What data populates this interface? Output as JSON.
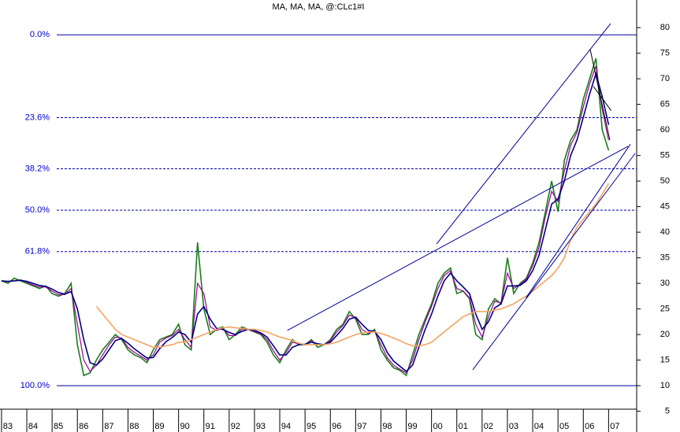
{
  "chart_data": {
    "type": "line",
    "title": "MA, MA, MA, @:CLc1#I",
    "xlim": [
      1982.94,
      2008.11
    ],
    "ylim": [
      5.4,
      85.4
    ],
    "yticks": [
      5,
      10,
      15,
      20,
      25,
      30,
      35,
      40,
      45,
      50,
      55,
      60,
      65,
      70,
      75,
      80
    ],
    "xticks": [
      {
        "value": 1983,
        "label": "83"
      },
      {
        "value": 1984,
        "label": "84"
      },
      {
        "value": 1985,
        "label": "85"
      },
      {
        "value": 1986,
        "label": "86"
      },
      {
        "value": 1987,
        "label": "87"
      },
      {
        "value": 1988,
        "label": "88"
      },
      {
        "value": 1989,
        "label": "89"
      },
      {
        "value": 1990,
        "label": "90"
      },
      {
        "value": 1991,
        "label": "91"
      },
      {
        "value": 1992,
        "label": "92"
      },
      {
        "value": 1993,
        "label": "93"
      },
      {
        "value": 1994,
        "label": "94"
      },
      {
        "value": 1995,
        "label": "95"
      },
      {
        "value": 1996,
        "label": "96"
      },
      {
        "value": 1997,
        "label": "97"
      },
      {
        "value": 1998,
        "label": "98"
      },
      {
        "value": 1999,
        "label": "99"
      },
      {
        "value": 2000,
        "label": "00"
      },
      {
        "value": 2001,
        "label": "01"
      },
      {
        "value": 2002,
        "label": "02"
      },
      {
        "value": 2003,
        "label": "03"
      },
      {
        "value": 2004,
        "label": "04"
      },
      {
        "value": 2005,
        "label": "05"
      },
      {
        "value": 2006,
        "label": "06"
      },
      {
        "value": 2007,
        "label": "07"
      }
    ],
    "x": [
      1983,
      1983.25,
      1983.5,
      1983.75,
      1984,
      1984.25,
      1984.5,
      1984.75,
      1985,
      1985.25,
      1985.5,
      1985.75,
      1986,
      1986.25,
      1986.5,
      1986.75,
      1987,
      1987.25,
      1987.5,
      1987.75,
      1988,
      1988.25,
      1988.5,
      1988.75,
      1989,
      1989.25,
      1989.5,
      1989.75,
      1990,
      1990.25,
      1990.5,
      1990.75,
      1991,
      1991.25,
      1991.5,
      1991.75,
      1992,
      1992.25,
      1992.5,
      1992.75,
      1993,
      1993.25,
      1993.5,
      1993.75,
      1994,
      1994.25,
      1994.5,
      1994.75,
      1995,
      1995.25,
      1995.5,
      1995.75,
      1996,
      1996.25,
      1996.5,
      1996.75,
      1997,
      1997.25,
      1997.5,
      1997.75,
      1998,
      1998.25,
      1998.5,
      1998.75,
      1999,
      1999.25,
      1999.5,
      1999.75,
      2000,
      2000.25,
      2000.5,
      2000.75,
      2001,
      2001.25,
      2001.5,
      2001.75,
      2002,
      2002.25,
      2002.5,
      2002.75,
      2003,
      2003.25,
      2003.5,
      2003.75,
      2004,
      2004.25,
      2004.5,
      2004.75,
      2005,
      2005.25,
      2005.5,
      2005.75,
      2006,
      2006.25,
      2006.5,
      2006.75,
      2007
    ],
    "series": [
      {
        "color": "#1b7d1b",
        "width": 1.6,
        "values": [
          30.5,
          30,
          31,
          30.5,
          30,
          29.5,
          29,
          29.5,
          28,
          27.5,
          28,
          30,
          18,
          12,
          12.5,
          15,
          17,
          18.5,
          20,
          19,
          17,
          16,
          15.5,
          14.5,
          17,
          19,
          19.5,
          20,
          22,
          18,
          17,
          38,
          25,
          20,
          21,
          21.5,
          19,
          20,
          21.5,
          21,
          20.5,
          20,
          18.5,
          16,
          14.5,
          17,
          19,
          18,
          18,
          19,
          17.5,
          18,
          19,
          21,
          22,
          24.5,
          23,
          20,
          20,
          21,
          17,
          15,
          13.5,
          13,
          12,
          16,
          20,
          23,
          26,
          30,
          32,
          33,
          28,
          28.5,
          27,
          20,
          19,
          25,
          27,
          26,
          35,
          28,
          30,
          31,
          34,
          38,
          44,
          50,
          44,
          54,
          58,
          60,
          66,
          70,
          74,
          60,
          56
        ]
      },
      {
        "color": "#990099",
        "width": 1.2,
        "values": [
          30.5,
          30.3,
          30.5,
          30.7,
          30.2,
          29.7,
          29.3,
          29.3,
          28.5,
          27.8,
          27.8,
          29,
          22,
          15,
          12.8,
          14,
          16,
          18,
          19.5,
          19.3,
          17.5,
          16.5,
          15.8,
          15,
          16,
          18.5,
          19.3,
          19.8,
          21,
          19,
          17.5,
          30,
          28,
          21.5,
          20.8,
          21.2,
          19.8,
          19.8,
          21,
          21,
          20.6,
          20.1,
          19,
          16.8,
          15,
          16.5,
          18.5,
          18.2,
          18,
          18.8,
          18,
          18,
          18.8,
          20.5,
          21.8,
          23.8,
          23.3,
          21,
          20.2,
          20.7,
          18,
          15.5,
          14,
          13.2,
          12.5,
          15,
          19,
          22.5,
          25.5,
          29,
          31.5,
          32.5,
          29,
          28.5,
          27.2,
          22,
          19.5,
          23.5,
          26.5,
          26.2,
          32,
          29,
          29.8,
          30.8,
          33.5,
          37,
          43,
          48,
          46,
          52,
          57,
          59.5,
          64.5,
          69,
          72.5,
          64,
          58
        ]
      },
      {
        "color": "#000080",
        "width": 1.6,
        "values": [
          30.5,
          30.4,
          30.5,
          30.6,
          30.4,
          30,
          29.6,
          29.4,
          28.9,
          28.2,
          27.9,
          28.4,
          25,
          19,
          14.5,
          14,
          15.2,
          17,
          18.8,
          19.2,
          18.3,
          17.2,
          16.3,
          15.4,
          15.5,
          17.2,
          18.6,
          19.4,
          20.5,
          20,
          18.5,
          24,
          25.5,
          23,
          21.2,
          21,
          20.4,
          20,
          20.6,
          21,
          20.8,
          20.3,
          19.5,
          17.8,
          16,
          16,
          17.5,
          18,
          18.1,
          18.5,
          18.2,
          18,
          18.5,
          19.8,
          21.2,
          23,
          23.4,
          22,
          20.8,
          20.6,
          19,
          16.5,
          14.8,
          13.8,
          12.8,
          14,
          17.5,
          21,
          24,
          27.5,
          30.5,
          32,
          30.5,
          29.3,
          28,
          24,
          21,
          22.5,
          25.2,
          26,
          29.5,
          29.5,
          29.6,
          30.5,
          32.5,
          35.5,
          40.5,
          45.5,
          46.5,
          50,
          55,
          58,
          62.5,
          67,
          71,
          66.5,
          61
        ]
      },
      {
        "color": "#f4a460",
        "width": 1.6,
        "values": [
          null,
          null,
          null,
          null,
          null,
          null,
          null,
          null,
          null,
          null,
          null,
          null,
          null,
          null,
          null,
          25.5,
          24,
          22.5,
          21,
          20,
          19.5,
          19,
          18.5,
          18,
          17.5,
          17.5,
          17.8,
          18,
          18.5,
          18.5,
          19,
          19.5,
          20,
          20.5,
          21,
          21.3,
          21.5,
          21.3,
          21.2,
          21,
          21,
          20.8,
          20.5,
          20,
          19.5,
          19.2,
          18.8,
          18.3,
          18,
          18,
          18,
          18,
          18.2,
          18.5,
          19,
          19.5,
          20,
          20.3,
          20.5,
          20.5,
          20.2,
          19.8,
          19.3,
          18.8,
          18.2,
          17.8,
          17.8,
          18,
          18.5,
          19.5,
          20.5,
          21.5,
          22.5,
          23.5,
          24,
          24.5,
          24.5,
          24.5,
          24.8,
          25,
          25.5,
          26,
          26.8,
          27.5,
          28.5,
          29.5,
          30.5,
          31.5,
          33,
          35,
          38.5,
          41,
          42.5,
          44,
          45.5,
          47.5,
          49.5
        ]
      }
    ],
    "fib_levels": [
      {
        "label": "0.0%",
        "value": 78.6,
        "dashed": false
      },
      {
        "label": "23.6%",
        "value": 62.4,
        "dashed": true
      },
      {
        "label": "38.2%",
        "value": 52.4,
        "dashed": true
      },
      {
        "label": "50.0%",
        "value": 44.3,
        "dashed": true
      },
      {
        "label": "61.8%",
        "value": 36.2,
        "dashed": true
      },
      {
        "label": "100.0%",
        "value": 10.0,
        "dashed": false
      }
    ],
    "fib_color": "#000099",
    "trendlines": [
      {
        "color": "#000099",
        "x": [
          1994.3,
          2007.77
        ],
        "y": [
          20.8,
          56.8
        ]
      },
      {
        "color": "#000099",
        "x": [
          2000.2,
          2007.08
        ],
        "y": [
          37.7,
          80.8
        ]
      },
      {
        "color": "#000099",
        "x": [
          2001.63,
          2008.05
        ],
        "y": [
          13.1,
          55.4
        ]
      },
      {
        "color": "#000099",
        "x": [
          2003.74,
          2007.86
        ],
        "y": [
          27.2,
          57.2
        ]
      },
      {
        "color": "#000000",
        "x": [
          2006.27,
          2007.05
        ],
        "y": [
          75.8,
          58.0
        ]
      },
      {
        "color": "#000000",
        "x": [
          2006.4,
          2007.1
        ],
        "y": [
          68.5,
          63.8
        ]
      }
    ]
  }
}
